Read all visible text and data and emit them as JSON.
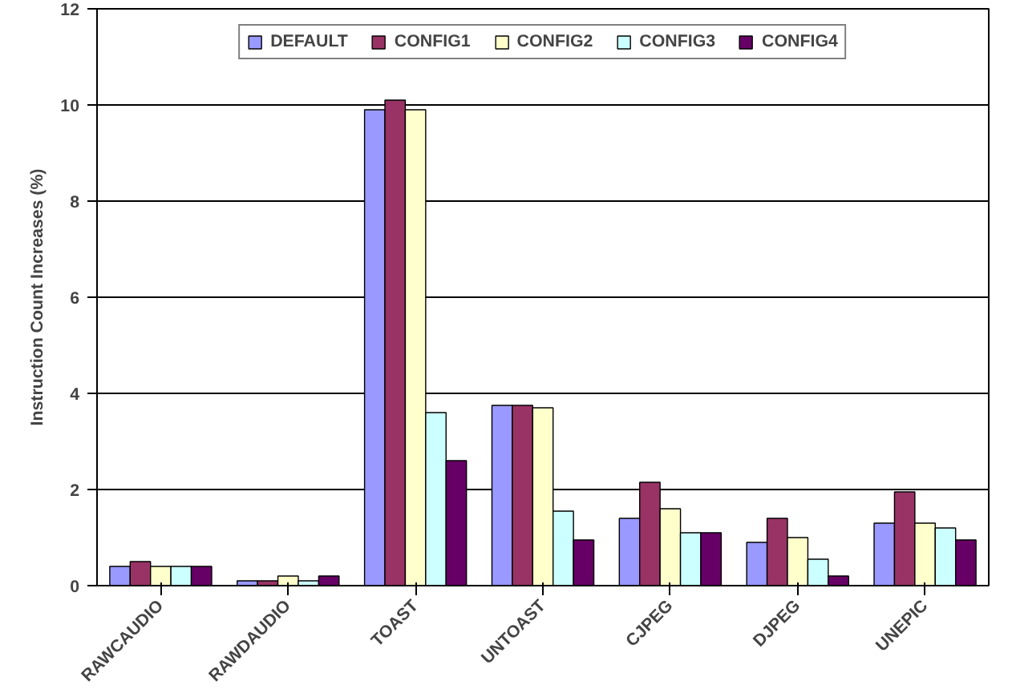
{
  "chart_data": {
    "type": "bar",
    "ylabel": "Instruction Count Increases (%)",
    "categories": [
      "RAWCAUDIO",
      "RAWDAUDIO",
      "TOAST",
      "UNTOAST",
      "CJPEG",
      "DJPEG",
      "UNEPIC"
    ],
    "series": [
      {
        "name": "DEFAULT",
        "color": "#9999ff",
        "values": [
          0.4,
          0.1,
          9.9,
          3.75,
          1.4,
          0.9,
          1.3
        ]
      },
      {
        "name": "CONFIG1",
        "color": "#993366",
        "values": [
          0.5,
          0.1,
          10.1,
          3.75,
          2.15,
          1.4,
          1.95
        ]
      },
      {
        "name": "CONFIG2",
        "color": "#ffffcc",
        "values": [
          0.4,
          0.2,
          9.9,
          3.7,
          1.6,
          1.0,
          1.3
        ]
      },
      {
        "name": "CONFIG3",
        "color": "#ccffff",
        "values": [
          0.4,
          0.1,
          3.6,
          1.55,
          1.1,
          0.55,
          1.2
        ]
      },
      {
        "name": "CONFIG4",
        "color": "#660066",
        "values": [
          0.4,
          0.2,
          2.6,
          0.95,
          1.1,
          0.2,
          0.95
        ]
      }
    ],
    "ylim": [
      0,
      12
    ],
    "yticks": [
      0,
      2,
      4,
      6,
      8,
      10,
      12
    ],
    "grid": "y",
    "legend": "top"
  }
}
